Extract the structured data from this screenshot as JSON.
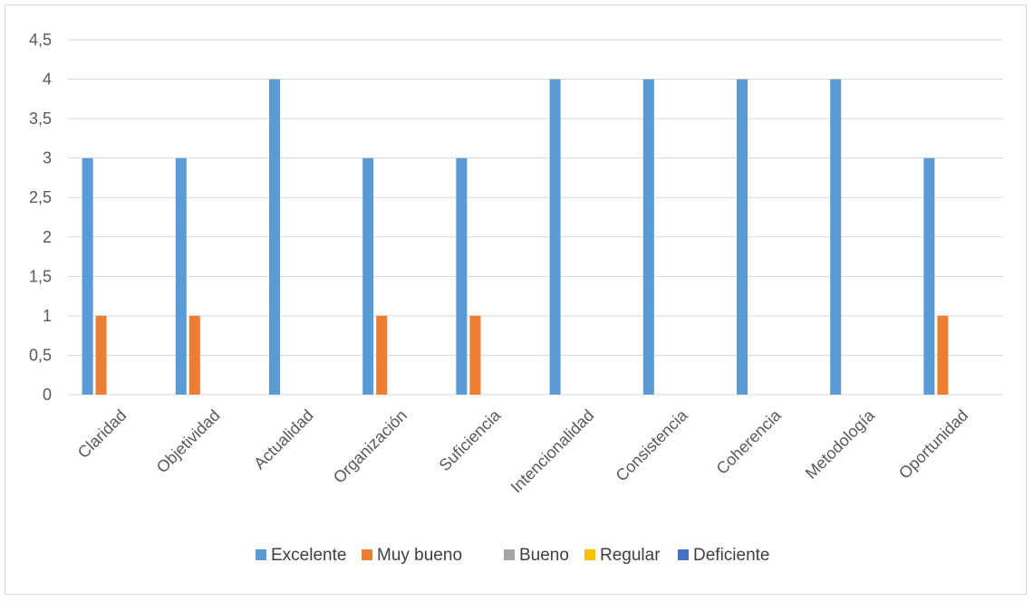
{
  "chart_data": {
    "type": "bar",
    "categories": [
      "Claridad",
      "Objetividad",
      "Actualidad",
      "Organización",
      "Suficiencia",
      "Intencionalidad",
      "Consistencia",
      "Coherencia",
      "Metodología",
      "Oportunidad"
    ],
    "series": [
      {
        "name": "Excelente",
        "color": "#5b9bd5",
        "values": [
          3,
          3,
          4,
          3,
          3,
          4,
          4,
          4,
          4,
          3
        ]
      },
      {
        "name": "Muy bueno",
        "color": "#ed7d31",
        "values": [
          1,
          1,
          0,
          1,
          1,
          0,
          0,
          0,
          0,
          1
        ]
      },
      {
        "name": "Bueno",
        "color": "#a5a5a5",
        "values": [
          0,
          0,
          0,
          0,
          0,
          0,
          0,
          0,
          0,
          0
        ]
      },
      {
        "name": "Regular",
        "color": "#ffc000",
        "values": [
          0,
          0,
          0,
          0,
          0,
          0,
          0,
          0,
          0,
          0
        ]
      },
      {
        "name": "Deficiente",
        "color": "#4472c4",
        "values": [
          0,
          0,
          0,
          0,
          0,
          0,
          0,
          0,
          0,
          0
        ]
      }
    ],
    "ylim": [
      0,
      4.5
    ],
    "yticks": [
      "0",
      "0,5",
      "1",
      "1,5",
      "2",
      "2,5",
      "3",
      "3,5",
      "4",
      "4,5"
    ],
    "grid": true,
    "legend_position": "bottom",
    "gridline_color": "#d9d9d9"
  }
}
